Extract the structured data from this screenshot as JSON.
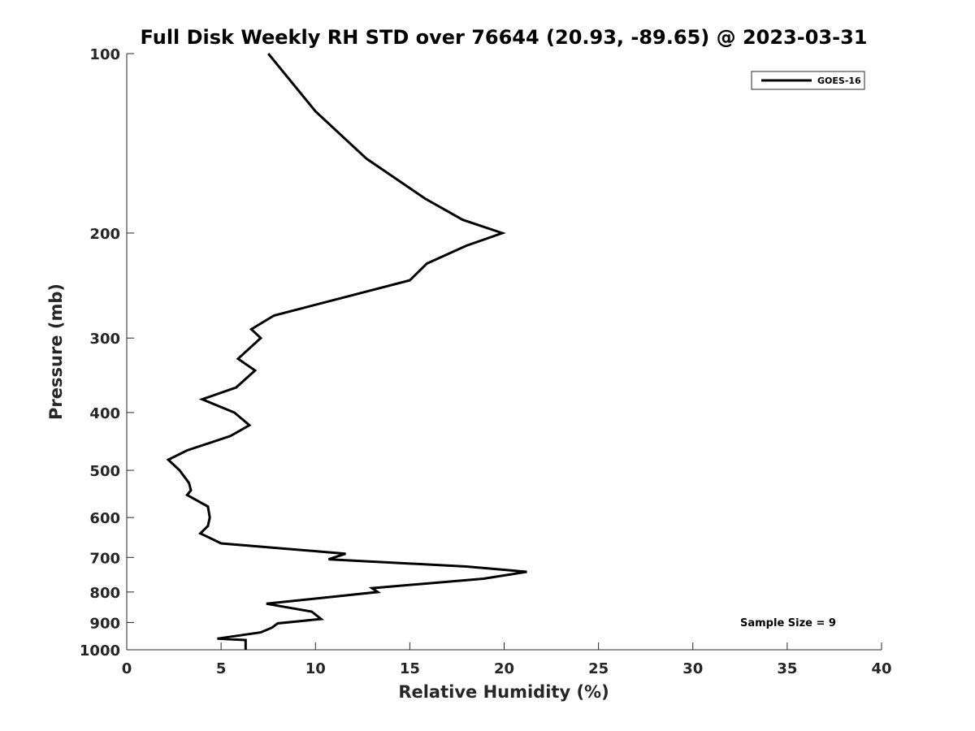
{
  "chart_data": {
    "type": "line",
    "title": "Full Disk Weekly RH STD over 76644 (20.93, -89.65) @ 2023-03-31",
    "xlabel": "Relative Humidity (%)",
    "ylabel": "Pressure (mb)",
    "xlim": [
      0,
      40
    ],
    "ylim": [
      100,
      1000
    ],
    "yscale": "log",
    "yreversed": true,
    "xticks": [
      0,
      5,
      10,
      15,
      20,
      25,
      30,
      35,
      40
    ],
    "yticks": [
      100,
      200,
      300,
      400,
      500,
      600,
      700,
      800,
      900,
      1000
    ],
    "legend": {
      "position": "top-right",
      "entries": [
        "GOES-16"
      ]
    },
    "annotation": "Sample Size = 9",
    "series": [
      {
        "name": "GOES-16",
        "color": "#000000",
        "points": [
          [
            7.5,
            100
          ],
          [
            10.0,
            125
          ],
          [
            12.7,
            150
          ],
          [
            15.8,
            175
          ],
          [
            17.8,
            190
          ],
          [
            19.9,
            200
          ],
          [
            18.0,
            210
          ],
          [
            15.9,
            225
          ],
          [
            15.0,
            240
          ],
          [
            7.8,
            275
          ],
          [
            6.6,
            290
          ],
          [
            7.1,
            300
          ],
          [
            5.9,
            325
          ],
          [
            6.8,
            340
          ],
          [
            5.8,
            363
          ],
          [
            4.0,
            380
          ],
          [
            5.7,
            400
          ],
          [
            6.5,
            420
          ],
          [
            5.5,
            438
          ],
          [
            3.2,
            463
          ],
          [
            2.2,
            480
          ],
          [
            2.8,
            500
          ],
          [
            3.3,
            525
          ],
          [
            3.4,
            540
          ],
          [
            3.2,
            550
          ],
          [
            4.3,
            575
          ],
          [
            4.4,
            600
          ],
          [
            4.3,
            620
          ],
          [
            3.9,
            638
          ],
          [
            5.0,
            663
          ],
          [
            11.6,
            690
          ],
          [
            10.7,
            705
          ],
          [
            18.0,
            725
          ],
          [
            21.2,
            740
          ],
          [
            18.9,
            760
          ],
          [
            13.0,
            788
          ],
          [
            13.3,
            800
          ],
          [
            7.4,
            837
          ],
          [
            9.8,
            863
          ],
          [
            10.3,
            888
          ],
          [
            8.0,
            903
          ],
          [
            7.7,
            918
          ],
          [
            7.1,
            935
          ],
          [
            4.8,
            958
          ],
          [
            6.3,
            963
          ],
          [
            6.3,
            1000
          ]
        ]
      }
    ]
  }
}
